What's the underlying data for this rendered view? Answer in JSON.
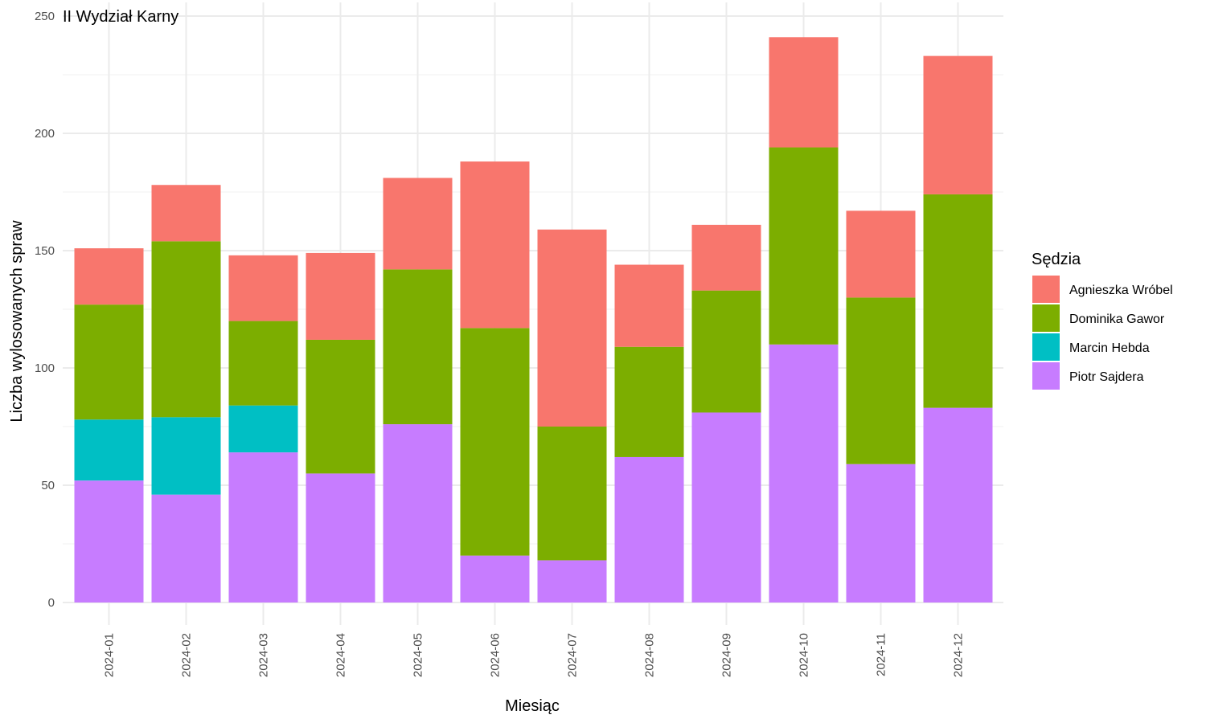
{
  "chart_data": {
    "type": "bar",
    "stacked": true,
    "facet_title": "II Wydział Karny",
    "xlabel": "Miesiąc",
    "ylabel": "Liczba wylosowanych spraw",
    "ylim": [
      0,
      250
    ],
    "yticks": [
      0,
      50,
      100,
      150,
      200,
      250
    ],
    "grid": true,
    "legend_position": "right",
    "legend_title": "Sędzia",
    "categories": [
      "2024-01",
      "2024-02",
      "2024-03",
      "2024-04",
      "2024-05",
      "2024-06",
      "2024-07",
      "2024-08",
      "2024-09",
      "2024-10",
      "2024-11",
      "2024-12"
    ],
    "series": [
      {
        "name": "Piotr Sajdera",
        "color": "#C77CFF",
        "values": [
          52,
          46,
          64,
          55,
          76,
          20,
          18,
          62,
          81,
          110,
          59,
          83
        ]
      },
      {
        "name": "Marcin Hebda",
        "color": "#00BFC4",
        "values": [
          26,
          33,
          20,
          0,
          0,
          0,
          0,
          0,
          0,
          0,
          0,
          0
        ]
      },
      {
        "name": "Dominika Gawor",
        "color": "#7CAE00",
        "values": [
          49,
          75,
          36,
          57,
          66,
          97,
          57,
          47,
          52,
          84,
          71,
          91
        ]
      },
      {
        "name": "Agnieszka Wróbel",
        "color": "#F8766D",
        "values": [
          24,
          24,
          28,
          37,
          39,
          71,
          84,
          35,
          28,
          47,
          37,
          59
        ]
      }
    ],
    "legend_order": [
      "Agnieszka Wróbel",
      "Dominika Gawor",
      "Marcin Hebda",
      "Piotr Sajdera"
    ]
  }
}
